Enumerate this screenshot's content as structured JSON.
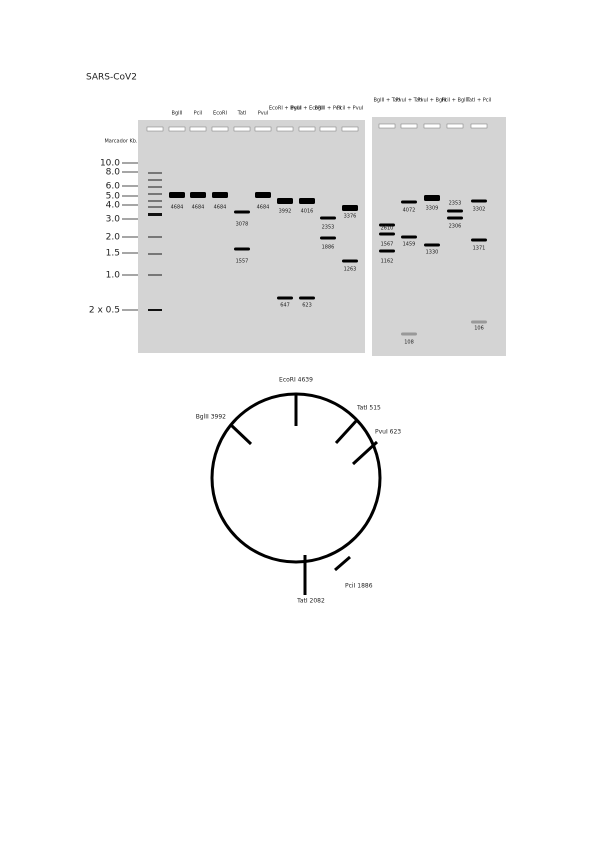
{
  "title": "SARS-CoV2",
  "marker": {
    "header": "Marcador Kb.",
    "labels": [
      "10.0",
      "8.0",
      "6.0",
      "5.0",
      "4.0",
      "3.0",
      "2.0",
      "1.5",
      "1.0",
      "2 x 0.5"
    ]
  },
  "gel": {
    "lanes": [
      {
        "header": "BglII",
        "bands": [
          "4684"
        ]
      },
      {
        "header": "PciI",
        "bands": [
          "4684"
        ]
      },
      {
        "header": "EcoRI",
        "bands": [
          "4684"
        ]
      },
      {
        "header": "TatI",
        "bands": [
          "3078",
          "1557"
        ]
      },
      {
        "header": "PvuI",
        "bands": [
          "4684"
        ]
      },
      {
        "header": "EcoRI + BglII",
        "bands": [
          "3992",
          "647"
        ]
      },
      {
        "header": "PvuI + EcoRI",
        "bands": [
          "4016",
          "623"
        ]
      },
      {
        "header": "BglII + PciI",
        "bands": [
          "2353",
          "1886"
        ]
      },
      {
        "header": "PciI + PvuI",
        "bands": [
          "3376",
          "1263"
        ]
      },
      {
        "header": "BglII + TatI",
        "bands": [
          "2610",
          "1567",
          "1162"
        ]
      },
      {
        "header": "PvuI + TatI",
        "bands": [
          "4072",
          "1459",
          "108"
        ]
      },
      {
        "header": "PvuI + BglII",
        "bands": [
          "3309",
          "1330"
        ]
      },
      {
        "header": "PciI + BglII",
        "bands": [
          "2353",
          "2306"
        ]
      },
      {
        "header": "TatI + PciI",
        "bands": [
          "3302",
          "1371",
          "106"
        ]
      }
    ]
  },
  "plasmid": {
    "sites": [
      "EcoRI 4639",
      "TatI 515",
      "PvuI 623",
      "PciI 1886",
      "TatI 2082",
      "BglII 3992"
    ]
  }
}
